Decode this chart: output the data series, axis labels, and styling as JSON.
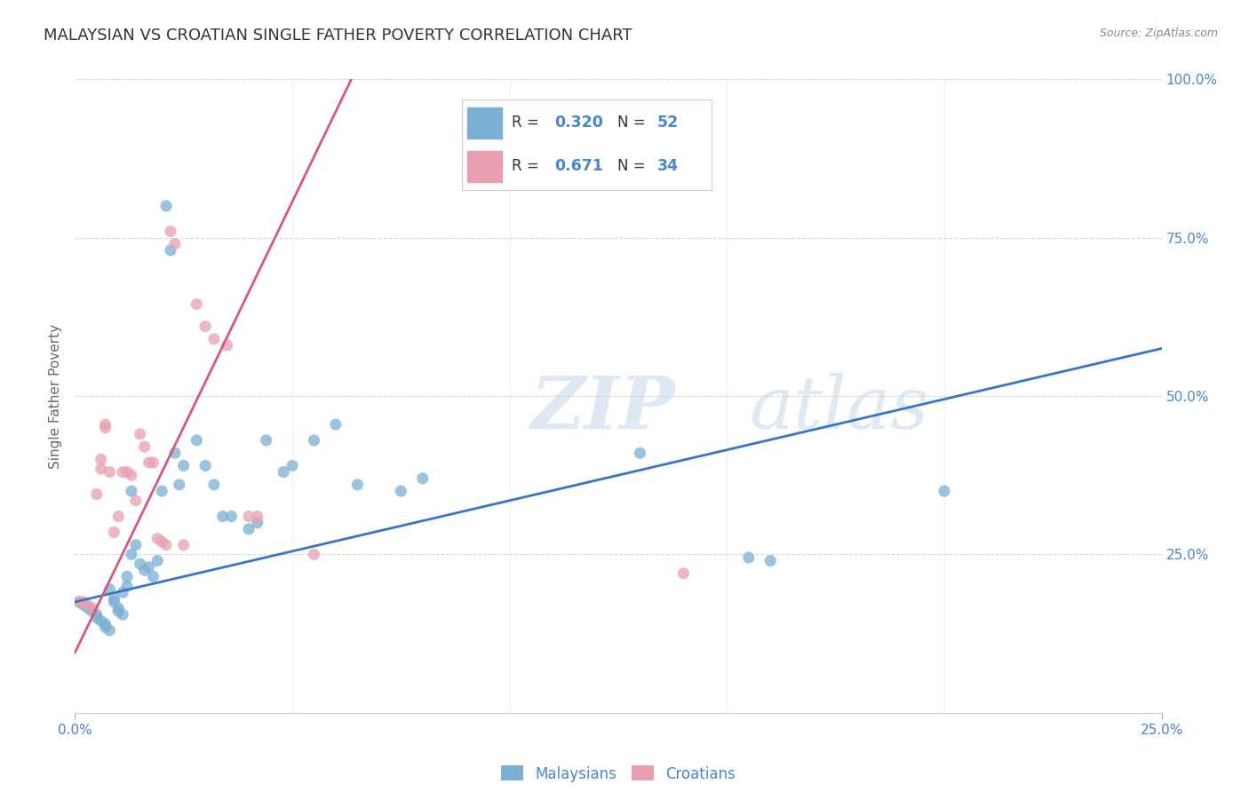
{
  "title": "MALAYSIAN VS CROATIAN SINGLE FATHER POVERTY CORRELATION CHART",
  "source": "Source: ZipAtlas.com",
  "ylabel": "Single Father Poverty",
  "watermark_zip": "ZIP",
  "watermark_atlas": "atlas",
  "legend_malaysians": "Malaysians",
  "legend_croatians": "Croatians",
  "R_malaysians": "0.320",
  "N_malaysians": "52",
  "R_croatians": "0.671",
  "N_croatians": "34",
  "color_malaysians": "#7bafd4",
  "color_croatians": "#e8a0b0",
  "color_line_malaysians": "#3a75c4",
  "color_line_croatians": "#d45880",
  "color_axis_labels": "#4a86c8",
  "background_color": "#ffffff",
  "grid_color": "#d8d8d8",
  "title_color": "#333333",
  "xlim": [
    0.0,
    0.25
  ],
  "ylim": [
    0.0,
    1.0
  ],
  "ytick_vals": [
    0.25,
    0.5,
    0.75,
    1.0
  ],
  "ytick_labels": [
    "25.0%",
    "50.0%",
    "75.0%",
    "100.0%"
  ],
  "xtick_vals": [
    0.0,
    0.25
  ],
  "xtick_labels": [
    "0.0%",
    "25.0%"
  ],
  "trend_blue_x0": 0.0,
  "trend_blue_y0": 0.175,
  "trend_blue_x1": 0.25,
  "trend_blue_y1": 0.575,
  "trend_pink_x0": 0.0,
  "trend_pink_y0": 0.095,
  "trend_pink_x1": 0.065,
  "trend_pink_y1": 1.02,
  "malaysians_x": [
    0.001,
    0.002,
    0.003,
    0.004,
    0.005,
    0.005,
    0.006,
    0.007,
    0.007,
    0.008,
    0.008,
    0.009,
    0.009,
    0.01,
    0.01,
    0.011,
    0.011,
    0.012,
    0.012,
    0.013,
    0.013,
    0.014,
    0.015,
    0.016,
    0.017,
    0.018,
    0.019,
    0.02,
    0.021,
    0.022,
    0.023,
    0.024,
    0.025,
    0.028,
    0.03,
    0.032,
    0.034,
    0.036,
    0.04,
    0.042,
    0.044,
    0.048,
    0.05,
    0.055,
    0.06,
    0.065,
    0.075,
    0.08,
    0.13,
    0.155,
    0.16,
    0.2
  ],
  "malaysians_y": [
    0.175,
    0.17,
    0.165,
    0.16,
    0.155,
    0.15,
    0.145,
    0.14,
    0.135,
    0.13,
    0.195,
    0.175,
    0.18,
    0.165,
    0.16,
    0.19,
    0.155,
    0.215,
    0.2,
    0.25,
    0.35,
    0.265,
    0.235,
    0.225,
    0.23,
    0.215,
    0.24,
    0.35,
    0.8,
    0.73,
    0.41,
    0.36,
    0.39,
    0.43,
    0.39,
    0.36,
    0.31,
    0.31,
    0.29,
    0.3,
    0.43,
    0.38,
    0.39,
    0.43,
    0.455,
    0.36,
    0.35,
    0.37,
    0.41,
    0.245,
    0.24,
    0.35
  ],
  "croatians_x": [
    0.001,
    0.002,
    0.003,
    0.004,
    0.005,
    0.006,
    0.006,
    0.007,
    0.007,
    0.008,
    0.009,
    0.01,
    0.011,
    0.012,
    0.013,
    0.014,
    0.015,
    0.016,
    0.017,
    0.018,
    0.019,
    0.02,
    0.021,
    0.022,
    0.023,
    0.025,
    0.028,
    0.03,
    0.032,
    0.035,
    0.04,
    0.042,
    0.055,
    0.14
  ],
  "croatians_y": [
    0.175,
    0.175,
    0.17,
    0.165,
    0.345,
    0.4,
    0.385,
    0.45,
    0.455,
    0.38,
    0.285,
    0.31,
    0.38,
    0.38,
    0.375,
    0.335,
    0.44,
    0.42,
    0.395,
    0.395,
    0.275,
    0.27,
    0.265,
    0.76,
    0.74,
    0.265,
    0.645,
    0.61,
    0.59,
    0.58,
    0.31,
    0.31,
    0.25,
    0.22
  ]
}
